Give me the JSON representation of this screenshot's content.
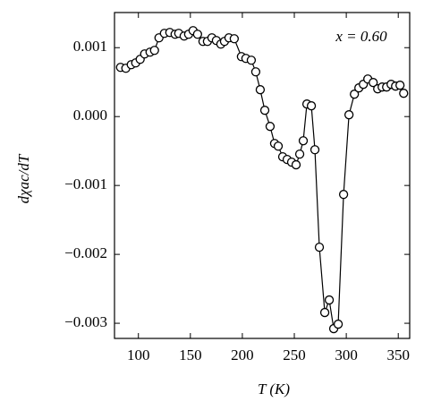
{
  "chart_data": {
    "type": "line",
    "ylabel": "dχac/dT",
    "xlabel": "T (K)",
    "annotation": "x = 0.60",
    "x": [
      82.8,
      87.9,
      93.1,
      97.4,
      101.7,
      106,
      111.2,
      115.5,
      119.8,
      125,
      130.2,
      135.3,
      138.8,
      144,
      148.3,
      152.6,
      156.9,
      162.1,
      166.4,
      170.7,
      175,
      179.3,
      182.8,
      187.1,
      192.2,
      199.1,
      203.4,
      208.6,
      212.9,
      217.2,
      221.6,
      226.7,
      231,
      234.5,
      238.8,
      243.1,
      247.4,
      251.7,
      255.2,
      258.6,
      262.1,
      266.4,
      269.8,
      274.1,
      279.3,
      283.6,
      287.9,
      292.2,
      297.4,
      302.6,
      307.8,
      312.1,
      316.4,
      320.7,
      325.9,
      330.2,
      334.5,
      338.8,
      343.1,
      347.4,
      351.7,
      355.2
    ],
    "series": [
      {
        "color": "#000000",
        "values": [
          0.000714,
          0.000701,
          0.000753,
          0.000779,
          0.000831,
          0.000909,
          0.000935,
          0.000961,
          0.001143,
          0.001208,
          0.001221,
          0.001195,
          0.001208,
          0.001169,
          0.001195,
          0.001247,
          0.001195,
          0.001091,
          0.001091,
          0.001143,
          0.001104,
          0.001052,
          0.001091,
          0.001143,
          0.00113,
          0.00087,
          0.000844,
          0.000818,
          0.000649,
          0.00039,
          9.1e-05,
          -0.000143,
          -0.00039,
          -0.000429,
          -0.000584,
          -0.000623,
          -0.000662,
          -0.0007,
          -0.000545,
          -0.000351,
          0.000182,
          0.000156,
          -0.000481,
          -0.001896,
          -0.002844,
          -0.002662,
          -0.003078,
          -0.003013,
          -0.00113,
          2.6e-05,
          0.000325,
          0.000416,
          0.000468,
          0.000545,
          0.000494,
          0.000403,
          0.000429,
          0.000429,
          0.000468,
          0.000442,
          0.000455,
          0.000338
        ]
      }
    ],
    "xlim": [
      77,
      361
    ],
    "ylim": [
      -0.00322,
      0.00151
    ],
    "xticks": [
      100,
      150,
      200,
      250,
      300,
      350
    ],
    "yticks": [
      {
        "value": -0.003,
        "label": "−0.003"
      },
      {
        "value": -0.002,
        "label": "−0.002"
      },
      {
        "value": -0.001,
        "label": "−0.001"
      },
      {
        "value": 0,
        "label": "0.000"
      },
      0.001
    ]
  }
}
